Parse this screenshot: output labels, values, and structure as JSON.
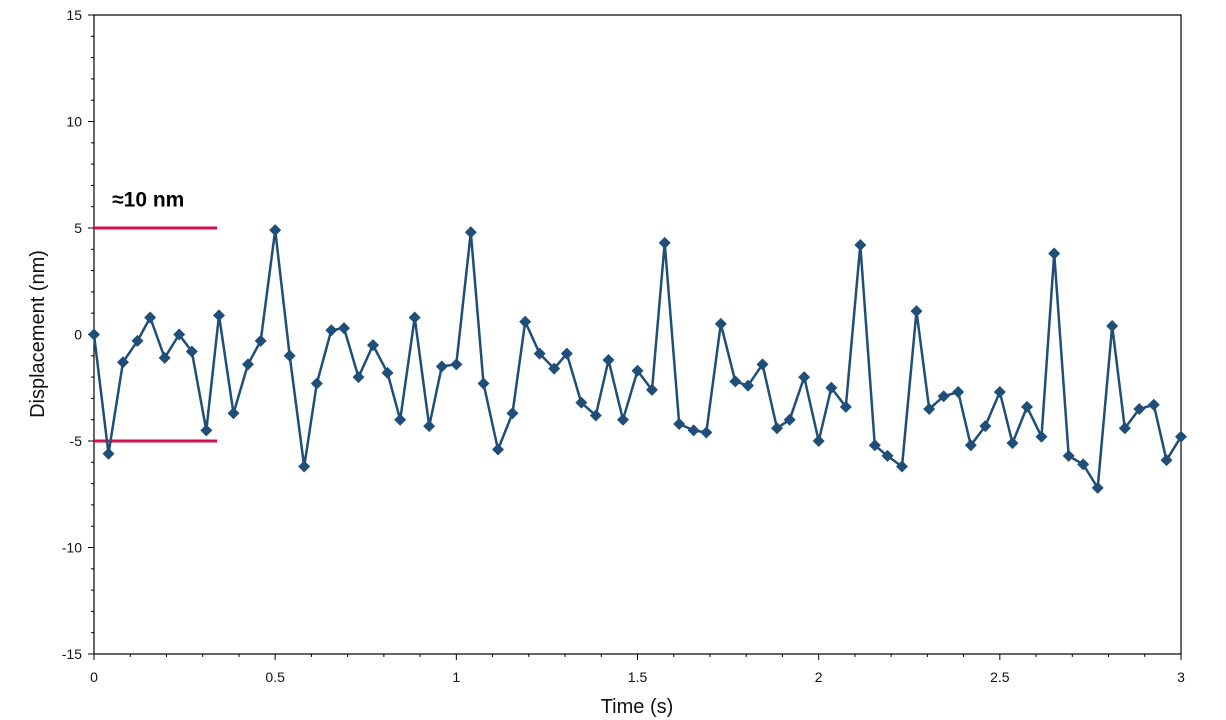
{
  "chart_data": {
    "type": "line",
    "title": "",
    "xlabel": "Time (s)",
    "ylabel": "Displacement (nm)",
    "xlim": [
      0,
      3
    ],
    "ylim": [
      -15,
      15
    ],
    "x_ticks": [
      0,
      0.5,
      1,
      1.5,
      2,
      2.5,
      3
    ],
    "x_tick_labels": [
      "0",
      "0.5",
      "1",
      "1.5",
      "2",
      "2.5",
      "3"
    ],
    "y_ticks": [
      -15,
      -10,
      -5,
      0,
      5,
      10,
      15
    ],
    "y_tick_labels": [
      "-15",
      "-10",
      "-5",
      "0",
      "5",
      "10",
      "15"
    ],
    "grid": false,
    "legend": "none",
    "series": [
      {
        "color": "#1f4e79",
        "marker": "diamond",
        "x": [
          0.0,
          0.04,
          0.08,
          0.12,
          0.155,
          0.195,
          0.235,
          0.27,
          0.31,
          0.345,
          0.385,
          0.425,
          0.46,
          0.5,
          0.54,
          0.58,
          0.615,
          0.655,
          0.69,
          0.73,
          0.77,
          0.81,
          0.845,
          0.885,
          0.925,
          0.96,
          1.0,
          1.04,
          1.075,
          1.115,
          1.155,
          1.19,
          1.23,
          1.27,
          1.305,
          1.345,
          1.385,
          1.42,
          1.46,
          1.5,
          1.54,
          1.575,
          1.615,
          1.655,
          1.69,
          1.73,
          1.77,
          1.805,
          1.845,
          1.885,
          1.92,
          1.96,
          2.0,
          2.035,
          2.075,
          2.115,
          2.155,
          2.19,
          2.23,
          2.27,
          2.305,
          2.345,
          2.385,
          2.42,
          2.46,
          2.5,
          2.535,
          2.575,
          2.615,
          2.65,
          2.69,
          2.73,
          2.77,
          2.81,
          2.845,
          2.885,
          2.925,
          2.96,
          3.0
        ],
        "y": [
          0.0,
          -5.6,
          -1.3,
          -0.3,
          0.8,
          -1.1,
          0.0,
          -0.8,
          -4.5,
          0.9,
          -3.7,
          -1.4,
          -0.3,
          4.9,
          -1.0,
          -6.2,
          -2.3,
          0.2,
          0.3,
          -2.0,
          -0.5,
          -1.8,
          -4.0,
          0.8,
          -4.3,
          -1.5,
          -1.4,
          4.8,
          -2.3,
          -5.4,
          -3.7,
          0.6,
          -0.9,
          -1.6,
          -0.9,
          -3.2,
          -3.8,
          -1.2,
          -4.0,
          -1.7,
          -2.6,
          4.3,
          -4.2,
          -4.5,
          -4.6,
          0.5,
          -2.2,
          -2.4,
          -1.4,
          -4.4,
          -4.0,
          -2.0,
          -5.0,
          -2.5,
          -3.4,
          4.2,
          -5.2,
          -5.7,
          -6.2,
          1.1,
          -3.5,
          -2.9,
          -2.7,
          -5.2,
          -4.3,
          -2.7,
          -5.1,
          -3.4,
          -4.8,
          3.8,
          -5.7,
          -6.1,
          -7.2,
          0.4,
          -4.4,
          -3.5,
          -3.3,
          -5.9,
          -4.8
        ]
      }
    ],
    "annotations": [
      {
        "kind": "hline",
        "y": 5,
        "x_range": [
          0,
          0.34
        ],
        "color": "#d0104c"
      },
      {
        "kind": "hline",
        "y": -5,
        "x_range": [
          0,
          0.34
        ],
        "color": "#d0104c"
      },
      {
        "kind": "text",
        "text": "≈10 nm",
        "x": 0.05,
        "y": 6
      }
    ]
  }
}
